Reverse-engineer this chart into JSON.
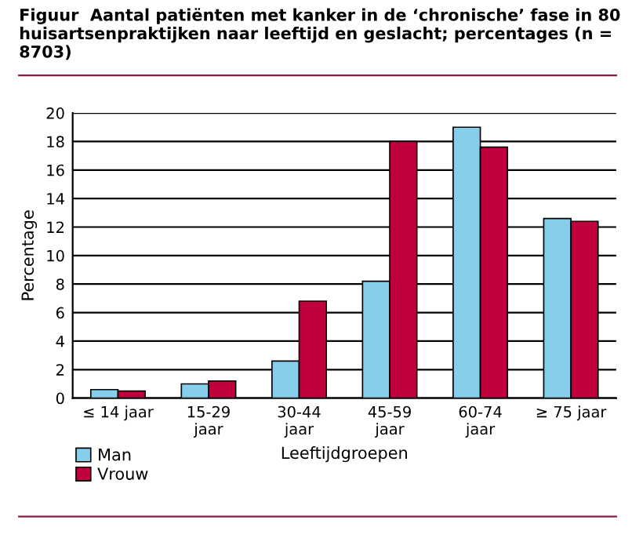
{
  "chart_data": {
    "type": "bar",
    "title": "Figuur  Aantal patiënten met kanker in de ‘chronische’ fase in 80 huisartsenpraktijken naar leeftijd en geslacht; percentages (n = 8703)",
    "xlabel": "Leeftijdgroepen",
    "ylabel": "Percentage",
    "categories": [
      "≤ 14 jaar",
      "15-29\njaar",
      "30-44\njaar",
      "45-59\njaar",
      "60-74\njaar",
      "≥ 75 jaar"
    ],
    "series": [
      {
        "name": "Man",
        "color": "#87ceeb",
        "values": [
          0.6,
          1.0,
          2.6,
          8.2,
          19.0,
          12.6
        ]
      },
      {
        "name": "Vrouw",
        "color": "#c0003c",
        "values": [
          0.5,
          1.2,
          6.8,
          18.0,
          17.6,
          12.4
        ]
      }
    ],
    "ylim": [
      0,
      20
    ],
    "yticks": [
      0,
      2,
      4,
      6,
      8,
      10,
      12,
      14,
      16,
      18,
      20
    ],
    "grid": "y",
    "legend": "bottom left"
  }
}
